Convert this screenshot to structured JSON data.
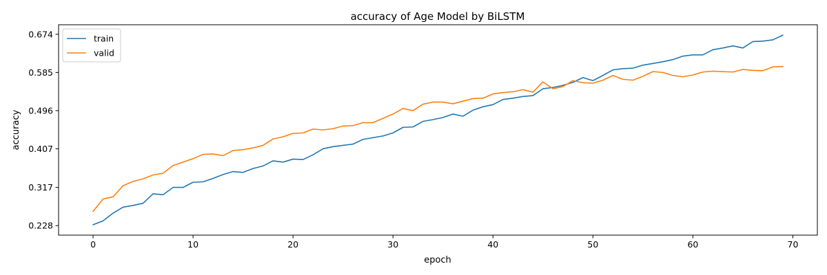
{
  "chart_data": {
    "type": "line",
    "title": "accuracy of Age Model by BiLSTM",
    "xlabel": "epoch",
    "ylabel": "accuracy",
    "xlim": [
      -3.45,
      72.45
    ],
    "ylim": [
      0.2058,
      0.6962
    ],
    "x_ticks": [
      0,
      10,
      20,
      30,
      40,
      50,
      60,
      70
    ],
    "y_ticks": [
      0.228,
      0.317,
      0.407,
      0.496,
      0.585,
      0.674
    ],
    "y_tick_labels": [
      "0.228",
      "0.317",
      "0.407",
      "0.496",
      "0.585",
      "0.674"
    ],
    "x_tick_labels": [
      "0",
      "10",
      "20",
      "30",
      "40",
      "50",
      "60",
      "70"
    ],
    "legend_position": "top-left",
    "grid": false,
    "x": [
      0,
      1,
      2,
      3,
      4,
      5,
      6,
      7,
      8,
      9,
      10,
      11,
      12,
      13,
      14,
      15,
      16,
      17,
      18,
      19,
      20,
      21,
      22,
      23,
      24,
      25,
      26,
      27,
      28,
      29,
      30,
      31,
      32,
      33,
      34,
      35,
      36,
      37,
      38,
      39,
      40,
      41,
      42,
      43,
      44,
      45,
      46,
      47,
      48,
      49,
      50,
      51,
      52,
      53,
      54,
      55,
      56,
      57,
      58,
      59,
      60,
      61,
      62,
      63,
      64,
      65,
      66,
      67,
      68,
      69
    ],
    "series": [
      {
        "name": "train",
        "color": "#1f77b4",
        "values": [
          0.23,
          0.239,
          0.257,
          0.271,
          0.275,
          0.28,
          0.302,
          0.3,
          0.317,
          0.317,
          0.329,
          0.33,
          0.338,
          0.347,
          0.354,
          0.352,
          0.361,
          0.367,
          0.379,
          0.376,
          0.383,
          0.382,
          0.393,
          0.407,
          0.412,
          0.415,
          0.418,
          0.429,
          0.433,
          0.437,
          0.444,
          0.457,
          0.458,
          0.471,
          0.475,
          0.48,
          0.488,
          0.483,
          0.497,
          0.505,
          0.51,
          0.522,
          0.525,
          0.529,
          0.531,
          0.547,
          0.55,
          0.555,
          0.562,
          0.573,
          0.566,
          0.578,
          0.591,
          0.594,
          0.595,
          0.602,
          0.606,
          0.61,
          0.615,
          0.623,
          0.626,
          0.626,
          0.638,
          0.642,
          0.647,
          0.642,
          0.657,
          0.658,
          0.661,
          0.672
        ]
      },
      {
        "name": "valid",
        "color": "#ff7f0e",
        "values": [
          0.261,
          0.29,
          0.295,
          0.321,
          0.331,
          0.337,
          0.346,
          0.35,
          0.368,
          0.376,
          0.384,
          0.394,
          0.395,
          0.391,
          0.403,
          0.405,
          0.409,
          0.415,
          0.43,
          0.435,
          0.443,
          0.444,
          0.453,
          0.451,
          0.454,
          0.46,
          0.461,
          0.468,
          0.468,
          0.478,
          0.488,
          0.501,
          0.496,
          0.511,
          0.516,
          0.516,
          0.512,
          0.518,
          0.524,
          0.525,
          0.535,
          0.538,
          0.54,
          0.545,
          0.539,
          0.563,
          0.547,
          0.552,
          0.566,
          0.561,
          0.56,
          0.567,
          0.578,
          0.569,
          0.567,
          0.576,
          0.587,
          0.585,
          0.578,
          0.575,
          0.579,
          0.586,
          0.588,
          0.587,
          0.586,
          0.592,
          0.59,
          0.589,
          0.598,
          0.599
        ]
      }
    ]
  }
}
